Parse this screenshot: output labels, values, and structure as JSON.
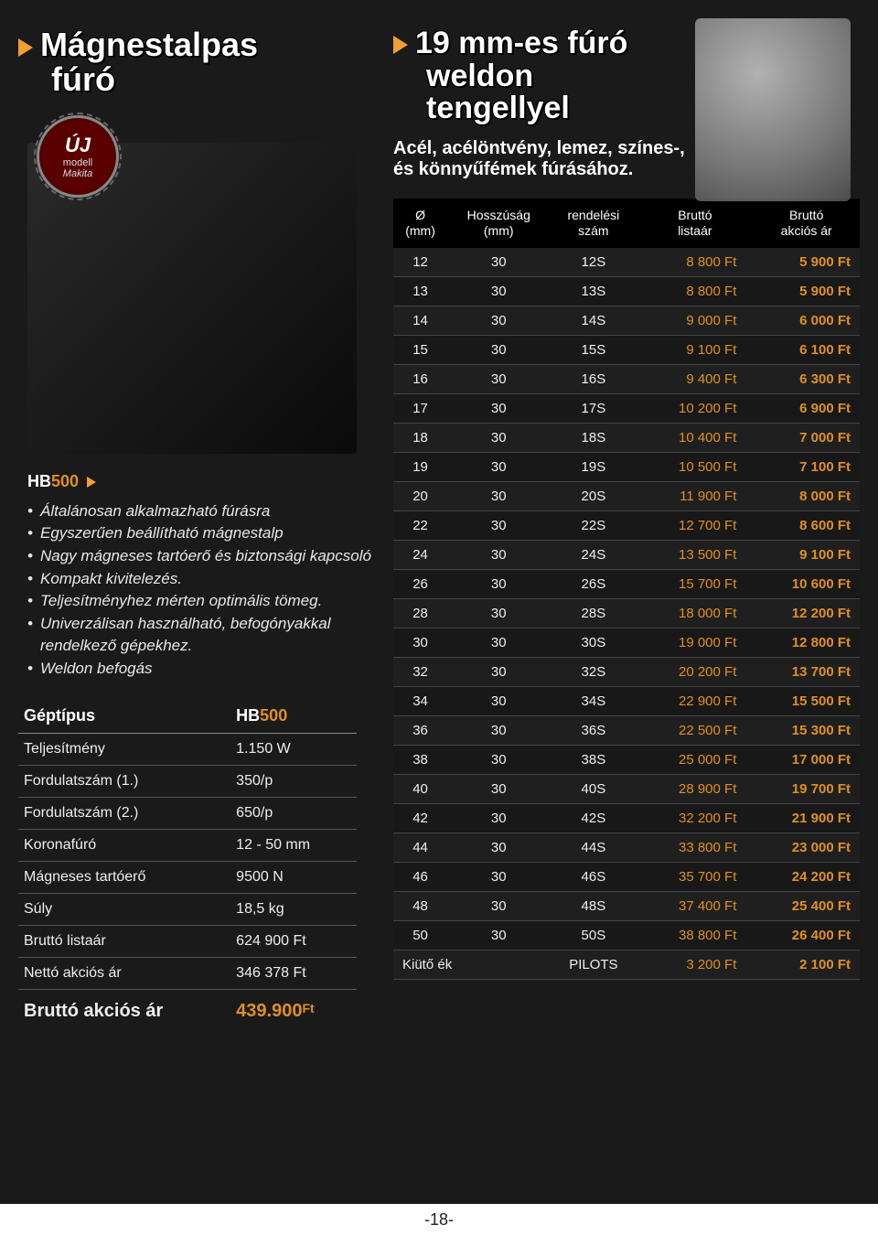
{
  "left": {
    "title_line1": "Mágnestalpas",
    "title_line2": "fúró",
    "badge": {
      "uj": "ÚJ",
      "modell": "modell",
      "brand": "Makita"
    },
    "model_prefix": "HB",
    "model_num": "500",
    "features": [
      "Általánosan alkalmazható fúrásra",
      "Egyszerűen beállítható mágnestalp",
      "Nagy mágneses tartóerő és biztonsági kapcsoló",
      "Kompakt kivitelezés.",
      "Teljesítményhez mérten optimális tömeg.",
      "Univerzálisan használható, befogónyakkal rendelkező gépekhez.",
      "Weldon befogás"
    ],
    "spec_header_label": "Géptípus",
    "spec_header_value": "HB500",
    "specs": [
      {
        "label": "Teljesítmény",
        "value": "1.150 W"
      },
      {
        "label": "Fordulatszám (1.)",
        "value": "350/p"
      },
      {
        "label": "Fordulatszám (2.)",
        "value": "650/p"
      },
      {
        "label": "Koronafúró",
        "value": "12 - 50 mm"
      },
      {
        "label": "Mágneses tartóerő",
        "value": "9500 N"
      },
      {
        "label": "Súly",
        "value": "18,5 kg"
      },
      {
        "label": "Bruttó listaár",
        "value": "624 900 Ft"
      },
      {
        "label": "Nettó akciós ár",
        "value": "346 378 Ft"
      }
    ],
    "final_label": "Bruttó akciós ár",
    "final_value": "439.900",
    "final_currency": "Ft"
  },
  "right": {
    "title_line1": "19 mm-es fúró",
    "title_line2": "weldon",
    "title_line3": "tengellyel",
    "subtitle": "Acél, acélöntvény, lemez, színes-, és könnyűfémek fúrásához.",
    "headers": {
      "c1a": "Ø",
      "c1b": "(mm)",
      "c2a": "Hosszúság",
      "c2b": "(mm)",
      "c3a": "rendelési",
      "c3b": "szám",
      "c4a": "Bruttó",
      "c4b": "listaár",
      "c5a": "Bruttó",
      "c5b": "akciós ár"
    },
    "rows": [
      {
        "d": "12",
        "l": "30",
        "code": "12S",
        "list": "8 800 Ft",
        "sale": "5 900 Ft"
      },
      {
        "d": "13",
        "l": "30",
        "code": "13S",
        "list": "8 800 Ft",
        "sale": "5 900 Ft"
      },
      {
        "d": "14",
        "l": "30",
        "code": "14S",
        "list": "9 000 Ft",
        "sale": "6 000 Ft"
      },
      {
        "d": "15",
        "l": "30",
        "code": "15S",
        "list": "9 100 Ft",
        "sale": "6 100 Ft"
      },
      {
        "d": "16",
        "l": "30",
        "code": "16S",
        "list": "9 400 Ft",
        "sale": "6 300 Ft"
      },
      {
        "d": "17",
        "l": "30",
        "code": "17S",
        "list": "10 200 Ft",
        "sale": "6 900 Ft"
      },
      {
        "d": "18",
        "l": "30",
        "code": "18S",
        "list": "10 400 Ft",
        "sale": "7 000 Ft"
      },
      {
        "d": "19",
        "l": "30",
        "code": "19S",
        "list": "10 500 Ft",
        "sale": "7 100 Ft"
      },
      {
        "d": "20",
        "l": "30",
        "code": "20S",
        "list": "11 900 Ft",
        "sale": "8 000 Ft"
      },
      {
        "d": "22",
        "l": "30",
        "code": "22S",
        "list": "12 700 Ft",
        "sale": "8 600 Ft"
      },
      {
        "d": "24",
        "l": "30",
        "code": "24S",
        "list": "13 500 Ft",
        "sale": "9 100 Ft"
      },
      {
        "d": "26",
        "l": "30",
        "code": "26S",
        "list": "15 700 Ft",
        "sale": "10 600 Ft"
      },
      {
        "d": "28",
        "l": "30",
        "code": "28S",
        "list": "18 000 Ft",
        "sale": "12 200 Ft"
      },
      {
        "d": "30",
        "l": "30",
        "code": "30S",
        "list": "19 000 Ft",
        "sale": "12 800 Ft"
      },
      {
        "d": "32",
        "l": "30",
        "code": "32S",
        "list": "20 200 Ft",
        "sale": "13 700 Ft"
      },
      {
        "d": "34",
        "l": "30",
        "code": "34S",
        "list": "22 900 Ft",
        "sale": "15 500 Ft"
      },
      {
        "d": "36",
        "l": "30",
        "code": "36S",
        "list": "22 500 Ft",
        "sale": "15 300 Ft"
      },
      {
        "d": "38",
        "l": "30",
        "code": "38S",
        "list": "25 000 Ft",
        "sale": "17 000 Ft"
      },
      {
        "d": "40",
        "l": "30",
        "code": "40S",
        "list": "28 900 Ft",
        "sale": "19 700 Ft"
      },
      {
        "d": "42",
        "l": "30",
        "code": "42S",
        "list": "32 200 Ft",
        "sale": "21 900 Ft"
      },
      {
        "d": "44",
        "l": "30",
        "code": "44S",
        "list": "33 800 Ft",
        "sale": "23 000 Ft"
      },
      {
        "d": "46",
        "l": "30",
        "code": "46S",
        "list": "35 700 Ft",
        "sale": "24 200 Ft"
      },
      {
        "d": "48",
        "l": "30",
        "code": "48S",
        "list": "37 400 Ft",
        "sale": "25 400 Ft"
      },
      {
        "d": "50",
        "l": "30",
        "code": "50S",
        "list": "38 800 Ft",
        "sale": "26 400 Ft"
      }
    ],
    "footer": {
      "label": "Kiütő ék",
      "code": "PILOTS",
      "list": "3 200 Ft",
      "sale": "2 100 Ft"
    }
  },
  "page_number": "-18-",
  "colors": {
    "accent": "#e09020",
    "bg": "#1a1a1a",
    "triangle": "#f0a030"
  }
}
